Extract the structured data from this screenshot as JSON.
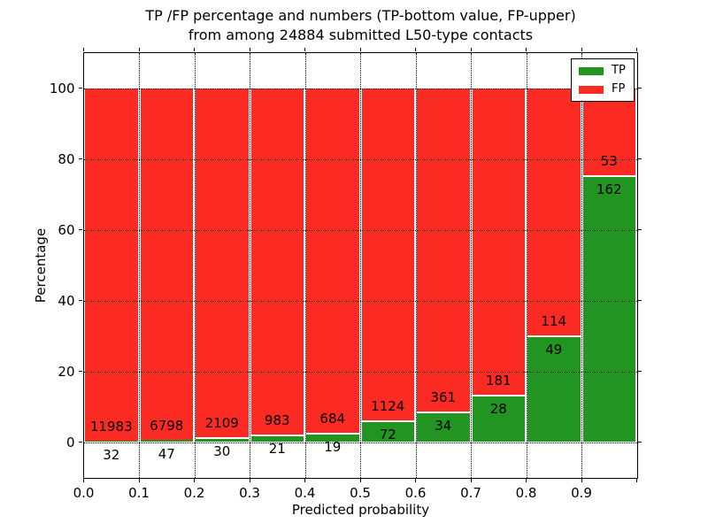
{
  "title": {
    "line1": "TP /FP percentage and numbers (TP-bottom value, FP-upper)",
    "line2": "from among 24884 submitted L50-type contacts"
  },
  "axes": {
    "xlabel": "Predicted probability",
    "ylabel": "Percentage",
    "x_tick_labels": [
      "0.0",
      "0.1",
      "0.2",
      "0.3",
      "0.4",
      "0.5",
      "0.6",
      "0.7",
      "0.8",
      "0.9"
    ],
    "x_tick_values": [
      0,
      0.1,
      0.2,
      0.3,
      0.4,
      0.5,
      0.6,
      0.7,
      0.8,
      0.9,
      1.0
    ],
    "x_grid_values": [
      0.1,
      0.2,
      0.3,
      0.4,
      0.5,
      0.6,
      0.7,
      0.8,
      0.9
    ],
    "y_tick_values": [
      0,
      20,
      40,
      60,
      80,
      100
    ],
    "xlim": [
      0,
      1
    ],
    "ylim": [
      -10,
      110
    ],
    "grid_style": "dotted"
  },
  "legend": {
    "position": "upper-right",
    "entries": [
      {
        "label": "TP",
        "color": "#219421"
      },
      {
        "label": "FP",
        "color": "#fb2a22"
      }
    ]
  },
  "chart_data": {
    "type": "bar",
    "stacked": true,
    "percent_normalized": true,
    "title": "TP /FP percentage and numbers (TP-bottom value, FP-upper) from among 24884 submitted L50-type contacts",
    "xlabel": "Predicted probability",
    "ylabel": "Percentage",
    "total_contacts": 24884,
    "bin_width": 0.1,
    "bin_starts": [
      0,
      0.1,
      0.2,
      0.3,
      0.4,
      0.5,
      0.6,
      0.7,
      0.8,
      0.9
    ],
    "series": [
      {
        "name": "TP",
        "color": "#219421",
        "counts": [
          32,
          47,
          30,
          21,
          19,
          72,
          34,
          28,
          49,
          162
        ]
      },
      {
        "name": "FP",
        "color": "#fb2a22",
        "counts": [
          11983,
          6798,
          2109,
          983,
          684,
          1124,
          361,
          181,
          114,
          53
        ]
      }
    ],
    "tp_percent": [
      0.27,
      0.69,
      1.4,
      2.09,
      2.7,
      6.02,
      8.61,
      13.4,
      30.06,
      75.35
    ],
    "fp_percent": [
      99.73,
      99.31,
      98.6,
      97.91,
      97.3,
      93.98,
      91.39,
      86.6,
      69.94,
      24.65
    ]
  }
}
